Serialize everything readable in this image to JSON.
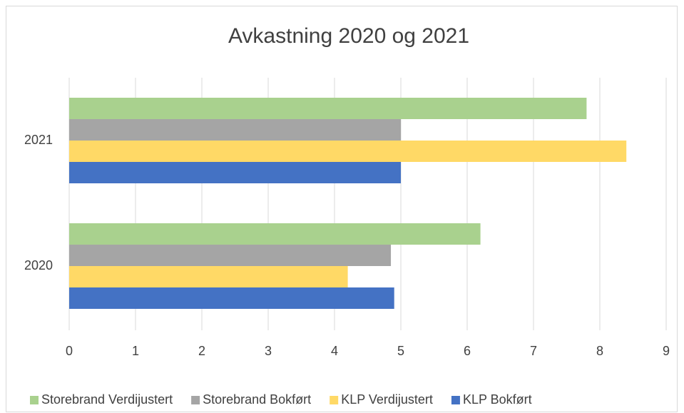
{
  "chart_data": {
    "type": "hbar",
    "title": "Avkastning 2020 og 2021",
    "categories": [
      "2020",
      "2021"
    ],
    "series": [
      {
        "name": "Storebrand Verdijustert",
        "color": "#a9d18e",
        "values": [
          6.2,
          7.8
        ]
      },
      {
        "name": "Storebrand Bokført",
        "color": "#a5a5a5",
        "values": [
          4.85,
          5.0
        ]
      },
      {
        "name": "KLP Verdijustert",
        "color": "#ffd966",
        "values": [
          4.2,
          8.4
        ]
      },
      {
        "name": "KLP Bokført",
        "color": "#4472c4",
        "values": [
          4.9,
          5.0
        ]
      }
    ],
    "xlim": [
      0,
      9
    ],
    "xticks": [
      0,
      1,
      2,
      3,
      4,
      5,
      6,
      7,
      8,
      9
    ],
    "grid": true,
    "legend": "bottom"
  }
}
